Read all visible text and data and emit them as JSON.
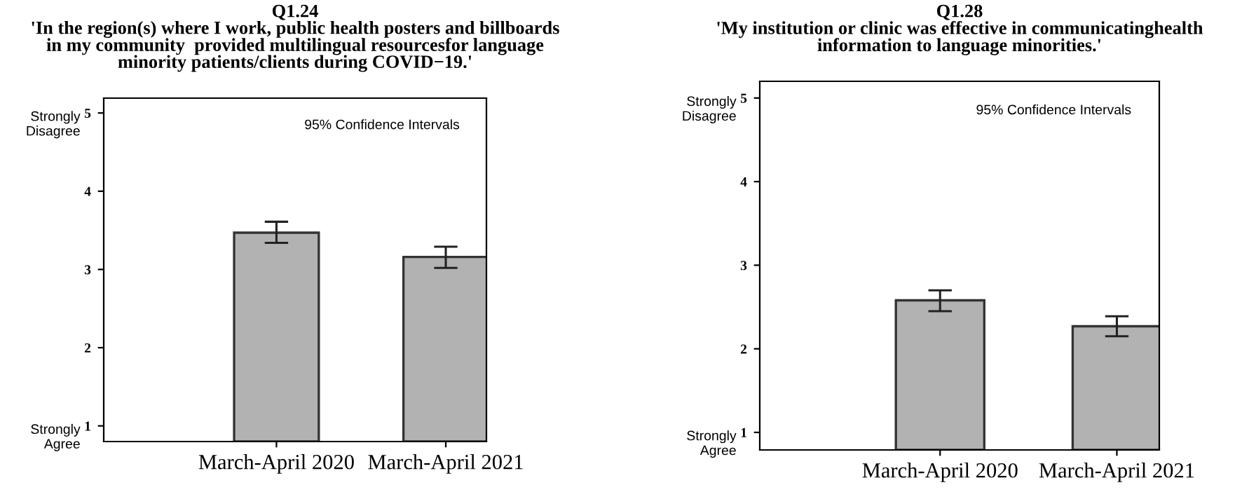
{
  "chart_data": [
    {
      "type": "bar",
      "title": "Q1.24",
      "subtitle": "'In the region(s) where I work, public health posters and billboards\nin my community  provided multilingual resourcesfor language\nminority patients/clients during COVID−19.'",
      "categories": [
        "March-April 2020",
        "March-April 2021"
      ],
      "values": [
        3.47,
        3.16
      ],
      "errors": [
        [
          3.34,
          3.61
        ],
        [
          3.02,
          3.29
        ]
      ],
      "color": "#b2b2b2",
      "ylim": [
        0.8,
        5.19
      ],
      "yticks": [
        1,
        2,
        3,
        4,
        5
      ],
      "grid": false,
      "annotations": [
        "95% Confidence Intervals",
        "Strongly\nDisagree",
        "Strongly\nAgree"
      ]
    },
    {
      "type": "bar",
      "title": "Q1.28",
      "subtitle": "'My institution or clinic was effective in communicatinghealth\ninformation to language minorities.'",
      "categories": [
        "March-April 2020",
        "March-April 2021"
      ],
      "values": [
        2.58,
        2.27
      ],
      "errors": [
        [
          2.45,
          2.7
        ],
        [
          2.15,
          2.39
        ]
      ],
      "color": "#b2b2b2",
      "ylim": [
        0.79,
        5.2
      ],
      "yticks": [
        1,
        2,
        3,
        4,
        5
      ],
      "grid": false,
      "annotations": [
        "95% Confidence Intervals",
        "Strongly\nDisagree",
        "Strongly\nAgree"
      ]
    }
  ]
}
